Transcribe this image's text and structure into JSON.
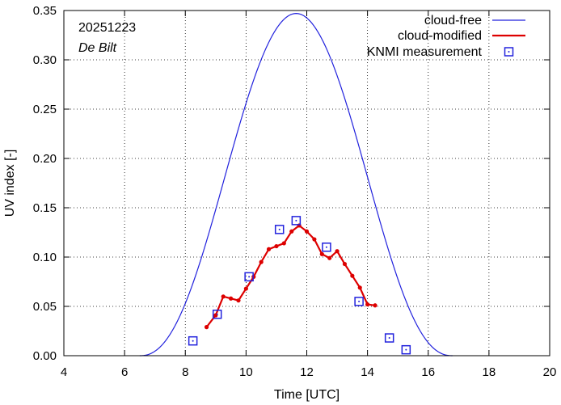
{
  "chart_data": {
    "type": "line",
    "date_label": "20251223",
    "location_label": "De Bilt",
    "xlabel": "Time  [UTC]",
    "ylabel": "UV index  [-]",
    "xlim": [
      4,
      20
    ],
    "ylim": [
      0,
      0.35
    ],
    "xticks": [
      4,
      6,
      8,
      10,
      12,
      14,
      16,
      18,
      20
    ],
    "yticks": [
      0.0,
      0.05,
      0.1,
      0.15,
      0.2,
      0.25,
      0.3,
      0.35
    ],
    "xtick_labels": [
      "4",
      "6",
      "8",
      "10",
      "12",
      "14",
      "16",
      "18",
      "20"
    ],
    "ytick_labels": [
      "0.00",
      "0.05",
      "0.10",
      "0.15",
      "0.20",
      "0.25",
      "0.30",
      "0.35"
    ],
    "series": [
      {
        "name": "cloud-free",
        "kind": "line",
        "color": "#2222dd",
        "peak_time": 11.65,
        "peak_value": 0.347,
        "start_time": 6.5,
        "end_time": 16.8
      },
      {
        "name": "cloud-modified",
        "kind": "line-markers",
        "color": "#dd0000",
        "x": [
          8.7,
          9.0,
          9.25,
          9.5,
          9.75,
          10.0,
          10.25,
          10.5,
          10.75,
          11.0,
          11.25,
          11.5,
          11.75,
          12.0,
          12.25,
          12.5,
          12.75,
          13.0,
          13.25,
          13.5,
          13.75,
          14.0,
          14.25
        ],
        "y": [
          0.029,
          0.041,
          0.06,
          0.058,
          0.056,
          0.068,
          0.08,
          0.095,
          0.108,
          0.111,
          0.114,
          0.126,
          0.132,
          0.126,
          0.118,
          0.103,
          0.099,
          0.106,
          0.093,
          0.081,
          0.069,
          0.052,
          0.051
        ]
      },
      {
        "name": "KNMI measurement",
        "kind": "markers",
        "color": "#2222dd",
        "x": [
          8.25,
          9.05,
          10.1,
          11.1,
          11.65,
          12.65,
          13.72,
          14.72,
          15.27
        ],
        "y": [
          0.015,
          0.042,
          0.08,
          0.128,
          0.137,
          0.11,
          0.055,
          0.018,
          0.006
        ]
      }
    ]
  }
}
